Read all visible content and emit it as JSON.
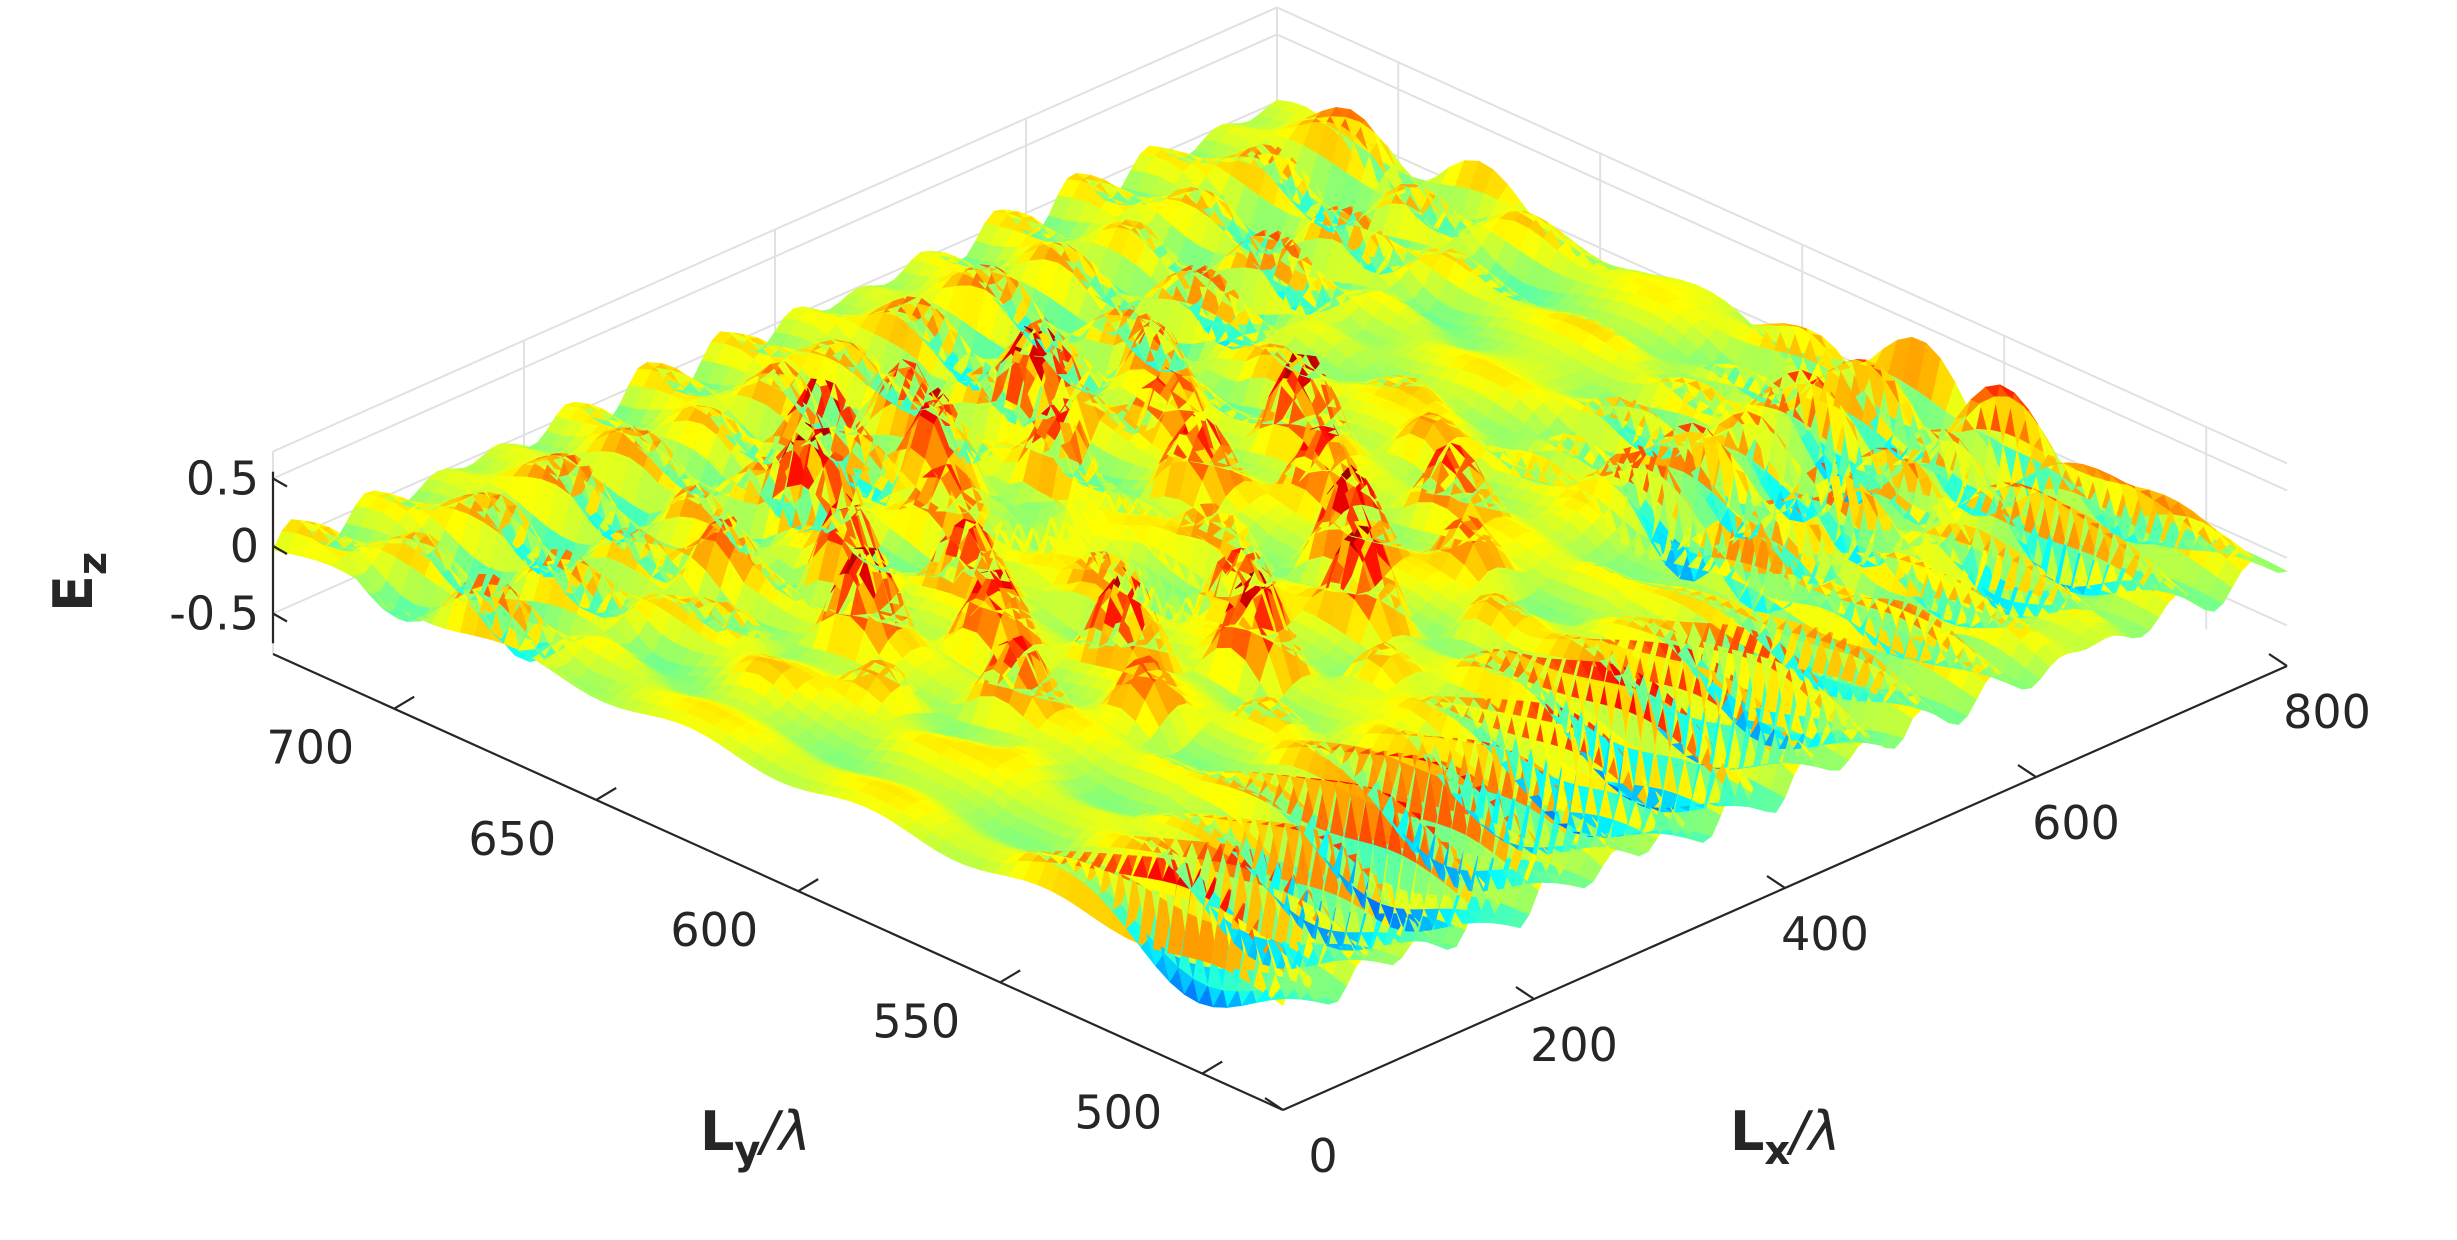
{
  "chart_data": {
    "type": "surface",
    "colormap": "jet",
    "axes": {
      "x": {
        "label_main": "L",
        "label_sub": "x",
        "label_tail": "/λ",
        "range": [
          0,
          800
        ],
        "ticks": [
          "0",
          "200",
          "400",
          "600",
          "800"
        ]
      },
      "y": {
        "label_main": "L",
        "label_sub": "y",
        "label_tail": "/λ",
        "range": [
          480,
          730
        ],
        "ticks": [
          "500",
          "550",
          "600",
          "650",
          "700"
        ]
      },
      "z": {
        "label_main": "E",
        "label_sub": "z",
        "range": [
          -0.7,
          0.7
        ],
        "ticks": [
          "-0.5",
          "0",
          "0.5"
        ]
      }
    },
    "grid": true,
    "surface_features": {
      "background_stripe_amplitude": 0.12,
      "peak_amplitude_max": 0.7,
      "trough_amplitude_min": -0.6,
      "scatter_center": {
        "x": 330,
        "y": 625
      }
    }
  }
}
